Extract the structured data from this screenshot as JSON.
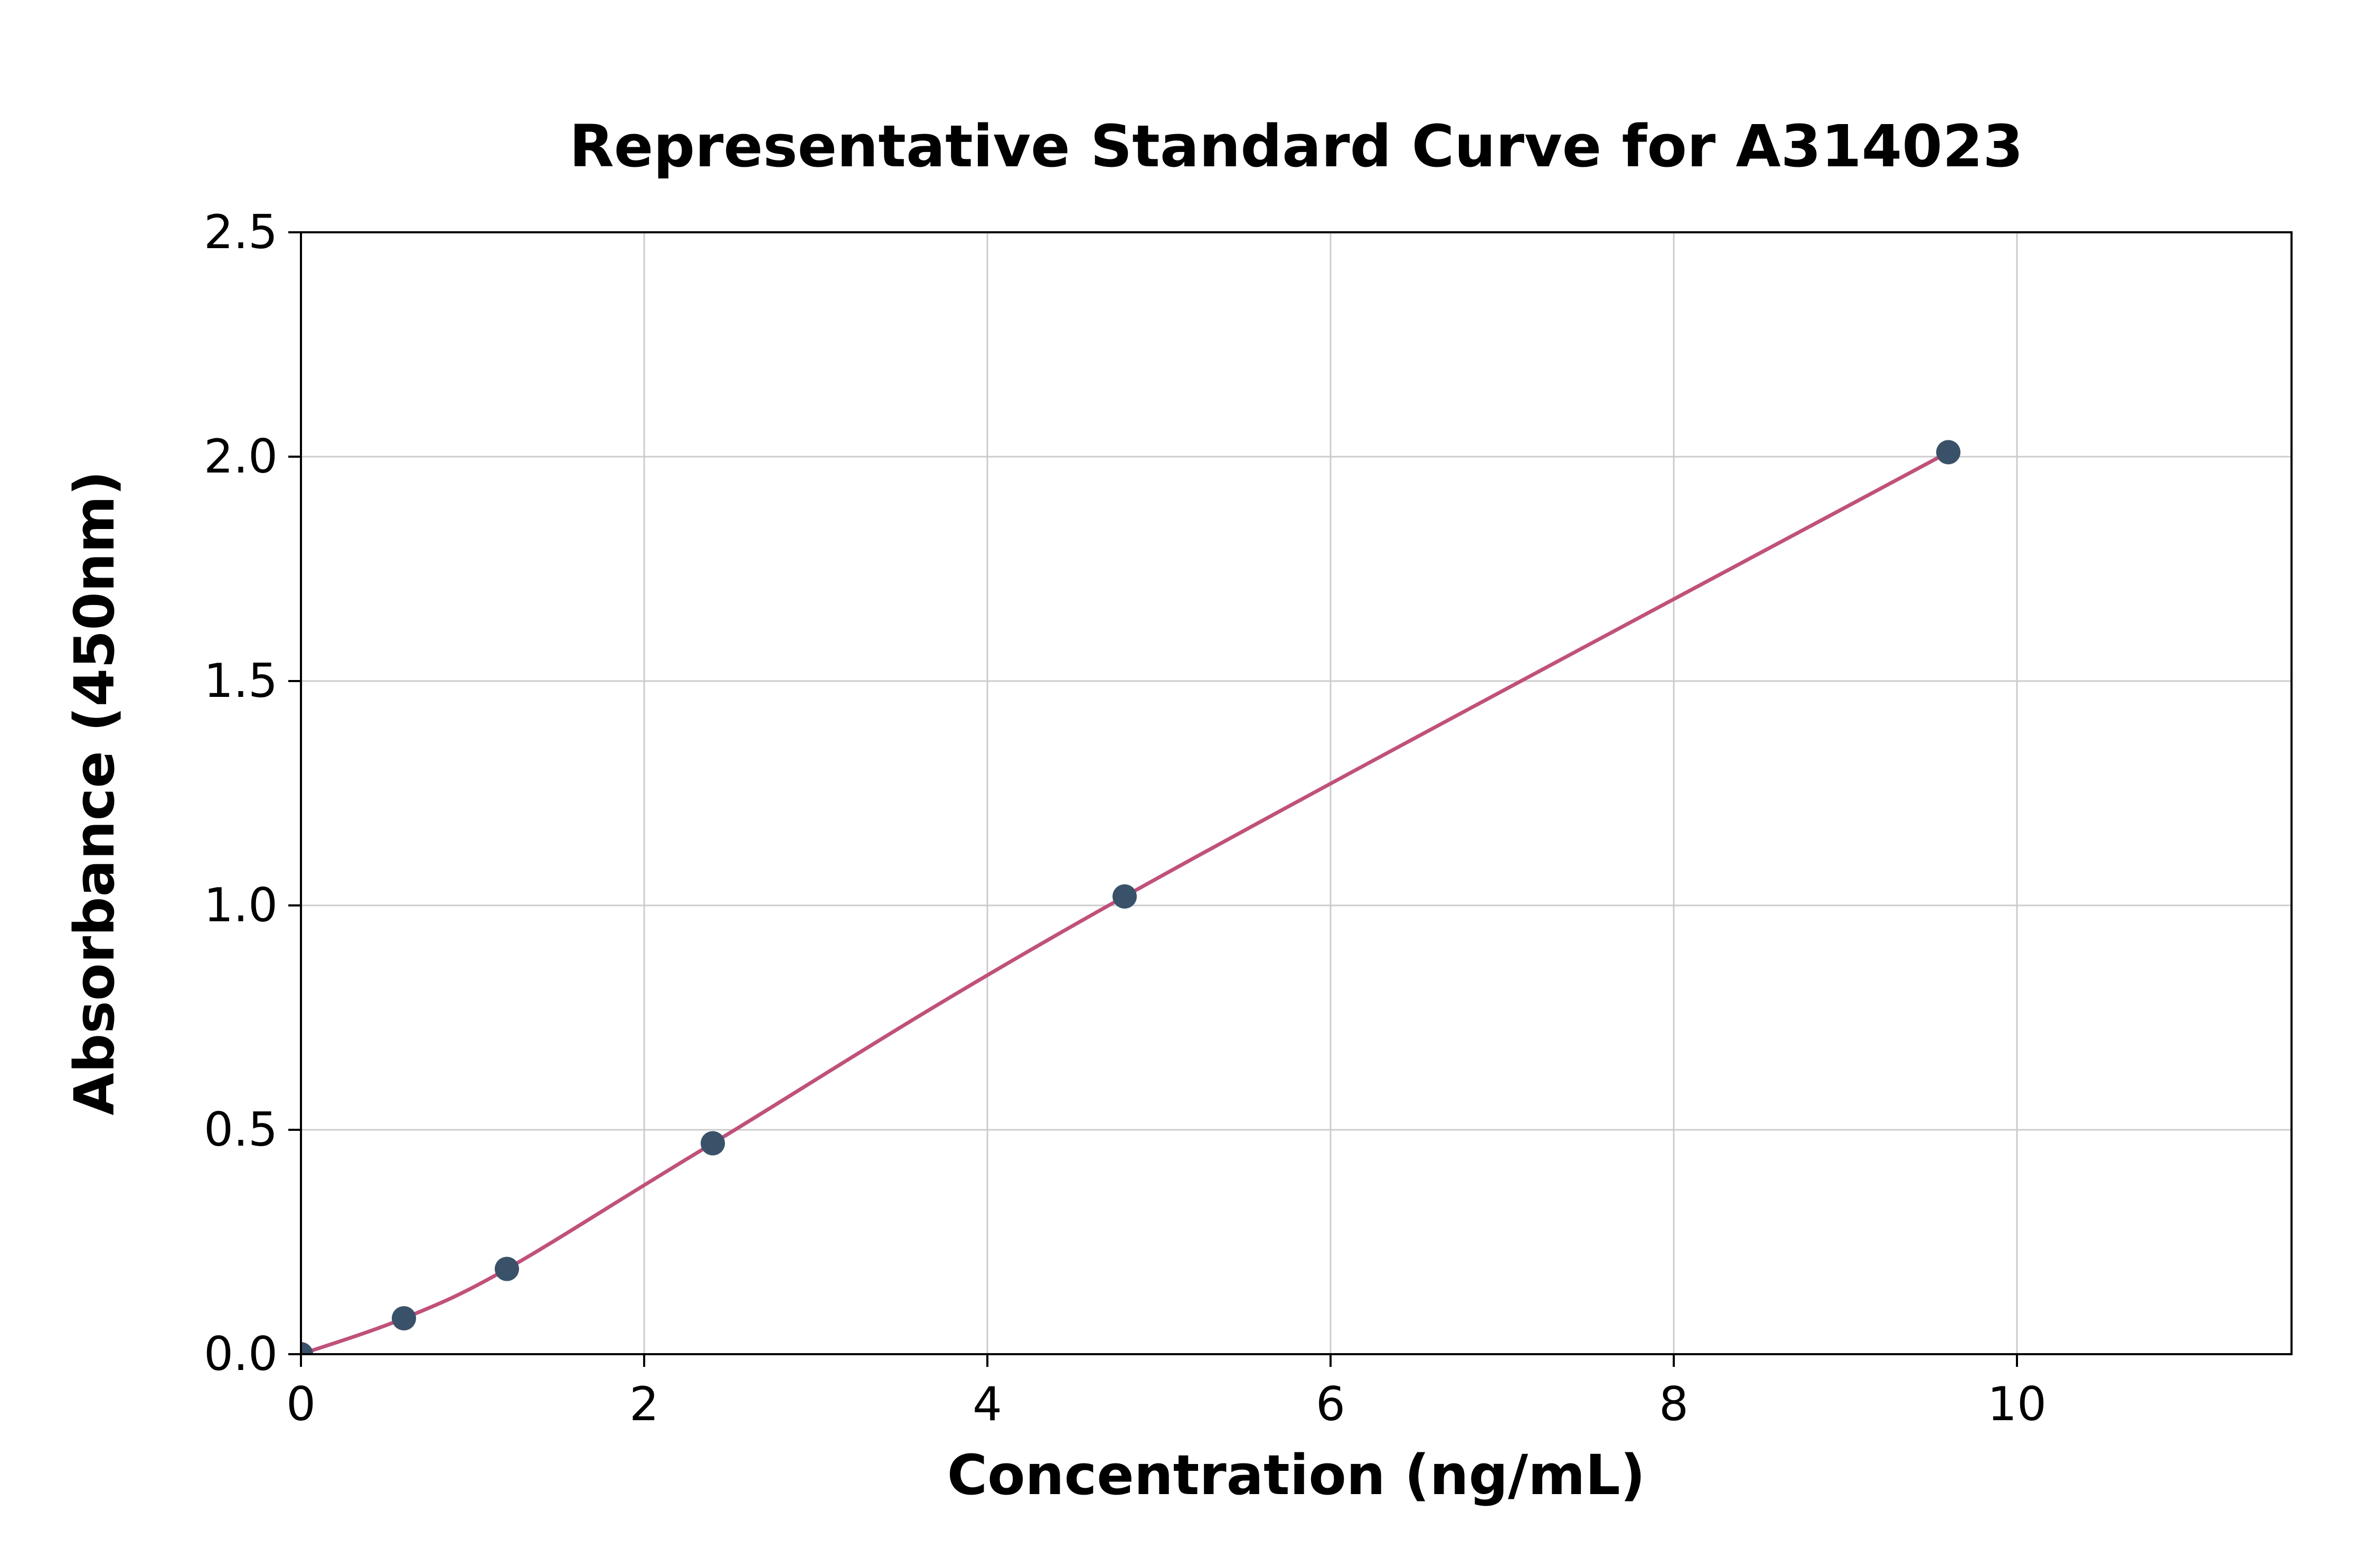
{
  "figure": {
    "background_color": "#ffffff"
  },
  "chart_data": {
    "type": "line",
    "title": "Representative Standard Curve for A314023",
    "xlabel": "Concentration (ng/mL)",
    "ylabel": "Absorbance (450nm)",
    "xlim": [
      0,
      11.6
    ],
    "ylim": [
      0,
      2.5
    ],
    "xticks": [
      0,
      2,
      4,
      6,
      8,
      10
    ],
    "xtick_labels": [
      "0",
      "2",
      "4",
      "6",
      "8",
      "10"
    ],
    "yticks": [
      0,
      0.5,
      1.0,
      1.5,
      2.0,
      2.5
    ],
    "ytick_labels": [
      "0.0",
      "0.5",
      "1.0",
      "1.5",
      "2.0",
      "2.5"
    ],
    "grid": true,
    "grid_color": "#cccccc",
    "axis_color": "#000000",
    "legend_position": "none",
    "curve_color": "#c0517a",
    "point_color": "#3a5269",
    "points": [
      [
        0,
        0.0
      ],
      [
        0.6,
        0.08
      ],
      [
        1.2,
        0.19
      ],
      [
        2.4,
        0.47
      ],
      [
        4.8,
        1.02
      ],
      [
        9.6,
        2.01
      ]
    ]
  }
}
